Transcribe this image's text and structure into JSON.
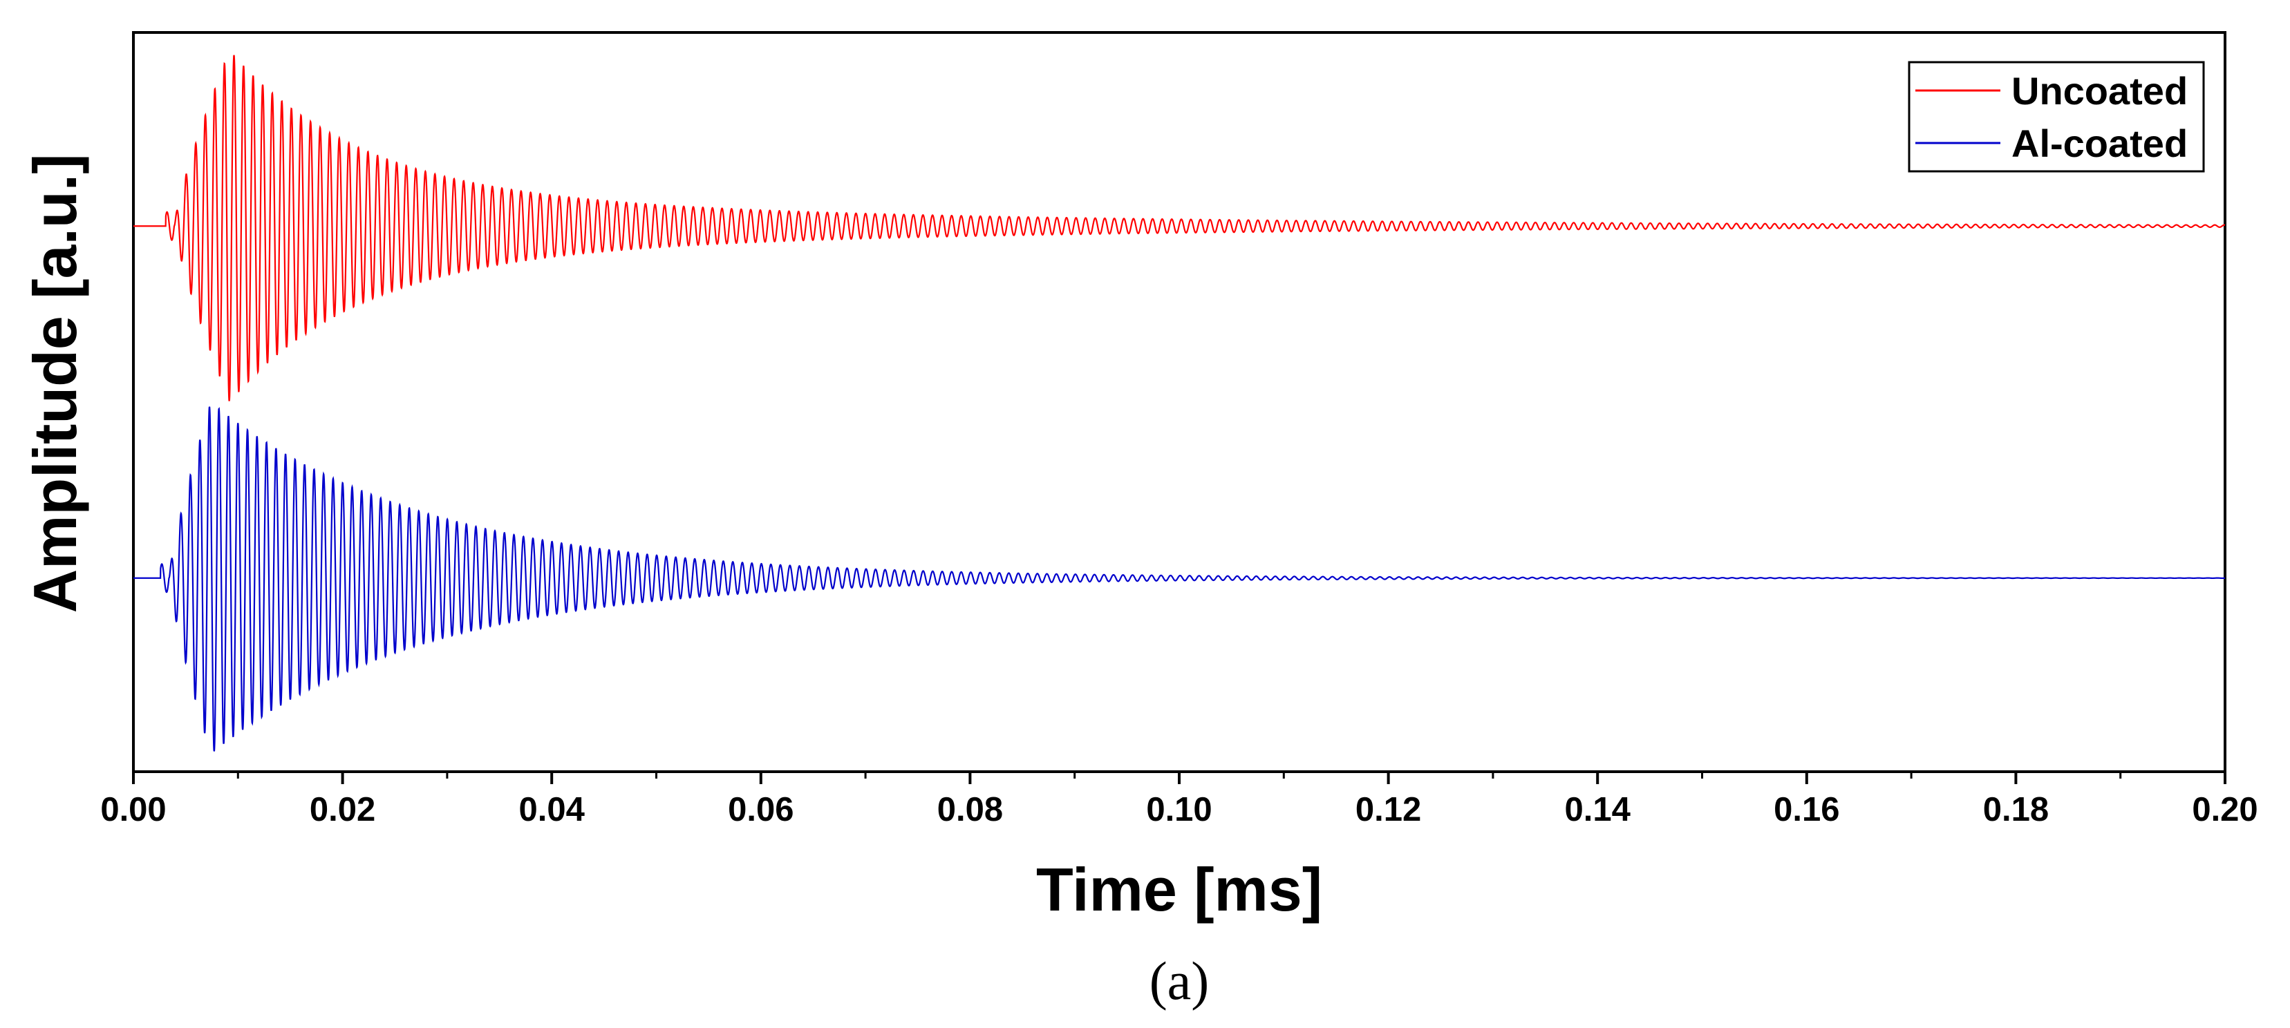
{
  "chart_data": {
    "type": "line",
    "title": "",
    "xlabel": "Time [ms]",
    "ylabel": "Amplitude [a.u.]",
    "xlim": [
      0.0,
      0.2
    ],
    "x_ticks": [
      "0.00",
      "0.02",
      "0.04",
      "0.06",
      "0.08",
      "0.10",
      "0.12",
      "0.14",
      "0.16",
      "0.18",
      "0.20"
    ],
    "y_ticks_shown": false,
    "grid": false,
    "legend_position": "top-right",
    "caption": "(a)",
    "series": [
      {
        "name": "Uncoated",
        "color": "#ff0000",
        "signal": {
          "baseline": 0.5,
          "onset_ms": 0.0039,
          "peak_time_ms": 0.0092,
          "peak_amplitude": 0.5,
          "decay_fast_ms": 0.012,
          "sustain_amplitude": 0.1,
          "decay_slow_ms": 0.055,
          "oscillation_period_ms": 0.000915
        }
      },
      {
        "name": "Al-coated",
        "color": "#0000cc",
        "signal": {
          "baseline": -0.5,
          "onset_ms": 0.0034,
          "peak_time_ms": 0.0074,
          "peak_amplitude": 0.5,
          "decay_fast_ms": 0.02,
          "sustain_amplitude": 0.02,
          "decay_slow_ms": 0.045,
          "oscillation_period_ms": 0.00091
        }
      }
    ]
  }
}
